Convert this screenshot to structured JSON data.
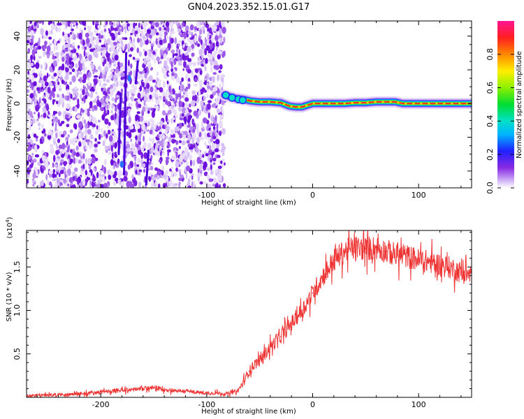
{
  "title": "GN04.2023.352.15.01.G17",
  "colors": {
    "snr_line": "#ee3333",
    "noise_purple": "#8a2be2",
    "axis": "#000000",
    "background": "#ffffff"
  },
  "chart_data": [
    {
      "type": "heatmap",
      "title": "GN04.2023.352.15.01.G17",
      "xlabel": "Height of straight line (km)",
      "ylabel": "Frequency (Hz)",
      "xlim": [
        -270,
        150
      ],
      "ylim": [
        -50,
        49
      ],
      "x_ticks": [
        -200,
        -100,
        0,
        100
      ],
      "x_tick_labels": [
        "-200",
        "-100",
        "0",
        "100"
      ],
      "y_ticks": [
        -40,
        -20,
        0,
        20,
        40
      ],
      "y_tick_labels": [
        "-40",
        "-20",
        "0",
        "20",
        "40"
      ],
      "noise_region_x": [
        -270,
        -83
      ],
      "ridge": {
        "x": [
          -83,
          -78,
          -72,
          -65,
          -58,
          -50,
          -40,
          -30,
          -22,
          -16,
          -10,
          -5,
          0,
          10,
          20,
          30,
          40,
          50,
          60,
          70,
          78,
          85,
          95,
          110,
          125,
          140,
          150
        ],
        "freq": [
          5,
          4,
          3,
          2.5,
          1.5,
          1,
          1,
          0.5,
          -1.5,
          -2,
          -2,
          -1,
          0,
          0,
          0,
          0,
          0.5,
          0.5,
          1,
          1,
          1,
          0,
          0,
          0,
          0,
          0,
          0
        ]
      },
      "colorbar": {
        "label": "Normalized spectral amplitude",
        "range": [
          0.0,
          1.0
        ],
        "ticks": [
          0.0,
          0.2,
          0.4,
          0.6,
          0.8
        ],
        "tick_labels": [
          "0.0",
          "0.2",
          "0.4",
          "0.6",
          "0.8"
        ]
      },
      "grid": false
    },
    {
      "type": "line",
      "xlabel": "Height of straight line (km)",
      "ylabel": "SNR (10 * v/v)",
      "y_multiplier_label": "(x10",
      "y_multiplier_exp": "4",
      "y_multiplier_close": ")",
      "xlim": [
        -270,
        150
      ],
      "ylim": [
        0,
        1.92
      ],
      "x_ticks": [
        -200,
        -100,
        0,
        100
      ],
      "x_tick_labels": [
        "-200",
        "-100",
        "0",
        "100"
      ],
      "y_ticks": [
        0.5,
        1.0,
        1.5
      ],
      "y_tick_labels": [
        "0.5",
        "1.0",
        "1.5"
      ],
      "series": [
        {
          "color": "#ee3333",
          "x": [
            -270,
            -240,
            -220,
            -200,
            -180,
            -160,
            -150,
            -140,
            -120,
            -100,
            -90,
            -80,
            -70,
            -65,
            -60,
            -55,
            -50,
            -45,
            -40,
            -30,
            -20,
            -10,
            0,
            10,
            20,
            30,
            40,
            50,
            60,
            70,
            80,
            90,
            100,
            110,
            120,
            130,
            140,
            150
          ],
          "y": [
            0.02,
            0.03,
            0.04,
            0.06,
            0.08,
            0.1,
            0.11,
            0.09,
            0.07,
            0.05,
            0.05,
            0.04,
            0.08,
            0.18,
            0.3,
            0.38,
            0.42,
            0.5,
            0.58,
            0.7,
            0.85,
            1.0,
            1.2,
            1.4,
            1.58,
            1.68,
            1.72,
            1.71,
            1.72,
            1.68,
            1.64,
            1.62,
            1.58,
            1.56,
            1.53,
            1.49,
            1.44,
            1.4
          ]
        }
      ],
      "grid": false
    }
  ]
}
